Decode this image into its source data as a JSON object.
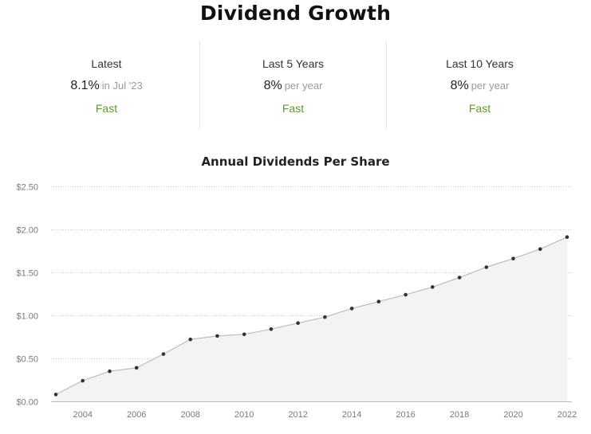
{
  "header": {
    "title": "Dividend Growth"
  },
  "stats": [
    {
      "label": "Latest",
      "value": "8.1%",
      "suffix": "in Jul '23",
      "rating": "Fast"
    },
    {
      "label": "Last 5 Years",
      "value": "8%",
      "suffix": "per year",
      "rating": "Fast"
    },
    {
      "label": "Last 10 Years",
      "value": "8%",
      "suffix": "per year",
      "rating": "Fast"
    }
  ],
  "colors": {
    "rating": "#5f9a35",
    "line": "#bdbdbd",
    "area": "#f3f3f3",
    "point": "#333333",
    "grid": "#c8c8c8"
  },
  "chart_data": {
    "type": "area",
    "title": "Annual Dividends Per Share",
    "xlabel": "",
    "ylabel": "",
    "x": [
      2003,
      2004,
      2005,
      2006,
      2007,
      2008,
      2009,
      2010,
      2011,
      2012,
      2013,
      2014,
      2015,
      2016,
      2017,
      2018,
      2019,
      2020,
      2021,
      2022
    ],
    "series": [
      {
        "values": [
          0.08,
          0.24,
          0.35,
          0.39,
          0.55,
          0.72,
          0.76,
          0.78,
          0.84,
          0.91,
          0.98,
          1.08,
          1.16,
          1.24,
          1.33,
          1.44,
          1.56,
          1.66,
          1.77,
          1.91
        ]
      }
    ],
    "ylim": [
      0,
      2.5
    ],
    "xlim": [
      2003,
      2022
    ],
    "yticks": [
      "$0.00",
      "$0.50",
      "$1.00",
      "$1.50",
      "$2.00",
      "$2.50"
    ],
    "ytick_values": [
      0,
      0.5,
      1.0,
      1.5,
      2.0,
      2.5
    ],
    "xticks": [
      "2004",
      "2006",
      "2008",
      "2010",
      "2012",
      "2014",
      "2016",
      "2018",
      "2020",
      "2022"
    ],
    "xtick_values": [
      2004,
      2006,
      2008,
      2010,
      2012,
      2014,
      2016,
      2018,
      2020,
      2022
    ],
    "grid": true,
    "legend": "none",
    "markers": true
  }
}
